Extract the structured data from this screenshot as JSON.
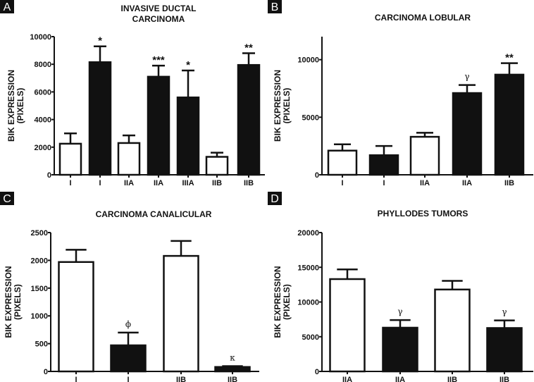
{
  "chart_data": [
    {
      "panel": "A",
      "type": "bar",
      "title": [
        "INVASIVE DUCTAL",
        "CARCINOMA"
      ],
      "ylabel": [
        "BIK EXPRESSION",
        "(PIXELS)"
      ],
      "ylim": [
        0,
        10000
      ],
      "yticks": [
        0,
        2000,
        4000,
        6000,
        8000,
        10000
      ],
      "categories": [
        "I",
        "I",
        "IIA",
        "IIA",
        "IIIA",
        "IIB",
        "IIB"
      ],
      "fill": [
        "white",
        "black",
        "white",
        "black",
        "black",
        "white",
        "black"
      ],
      "values": [
        2250,
        8150,
        2300,
        7100,
        5600,
        1300,
        7950
      ],
      "error_upper": [
        3000,
        9300,
        2850,
        7900,
        7550,
        1600,
        8800
      ],
      "annotations": [
        "",
        "*",
        "",
        "***",
        "*",
        "",
        "**"
      ]
    },
    {
      "panel": "B",
      "type": "bar",
      "title": [
        "CARCINOMA LOBULAR"
      ],
      "ylabel": [
        "BIK EXPRESSION",
        "(PIXELS)"
      ],
      "ylim": [
        0,
        12000
      ],
      "yticks": [
        0,
        5000,
        10000
      ],
      "categories": [
        "I",
        "I",
        "IIA",
        "IIA",
        "IIB"
      ],
      "fill": [
        "white",
        "black",
        "white",
        "black",
        "black"
      ],
      "values": [
        2100,
        1700,
        3300,
        7100,
        8700
      ],
      "error_upper": [
        2650,
        2500,
        3650,
        7800,
        9700
      ],
      "annotations": [
        "",
        "",
        "",
        "γ",
        "**"
      ]
    },
    {
      "panel": "C",
      "type": "bar",
      "title": [
        "CARCINOMA CANALICULAR"
      ],
      "ylabel": [
        "BIK EXPRESSION",
        "(PIXELS)"
      ],
      "ylim": [
        0,
        2500
      ],
      "yticks": [
        0,
        500,
        1000,
        1500,
        2000,
        2500
      ],
      "categories": [
        "I",
        "I",
        "IIB",
        "IIB"
      ],
      "fill": [
        "white",
        "black",
        "white",
        "black"
      ],
      "values": [
        1970,
        470,
        2080,
        80
      ],
      "error_upper": [
        2190,
        700,
        2350,
        95
      ],
      "annotations": [
        "",
        "ϕ",
        "",
        "κ"
      ]
    },
    {
      "panel": "D",
      "type": "bar",
      "title": [
        "PHYLLODES TUMORS"
      ],
      "ylabel": [
        "BIK EXPRESSION",
        "(PIXELS)"
      ],
      "ylim": [
        0,
        20000
      ],
      "yticks": [
        0,
        5000,
        10000,
        15000,
        20000
      ],
      "categories": [
        "IIA",
        "IIA",
        "IIB",
        "IIB"
      ],
      "fill": [
        "white",
        "black",
        "white",
        "black"
      ],
      "values": [
        13300,
        6300,
        11800,
        6250
      ],
      "error_upper": [
        14700,
        7400,
        13050,
        7350
      ],
      "annotations": [
        "",
        "γ",
        "",
        "γ"
      ]
    }
  ],
  "colors": {
    "bar_dark": "#111111",
    "bar_light": "#ffffff",
    "axis": "#111111"
  }
}
